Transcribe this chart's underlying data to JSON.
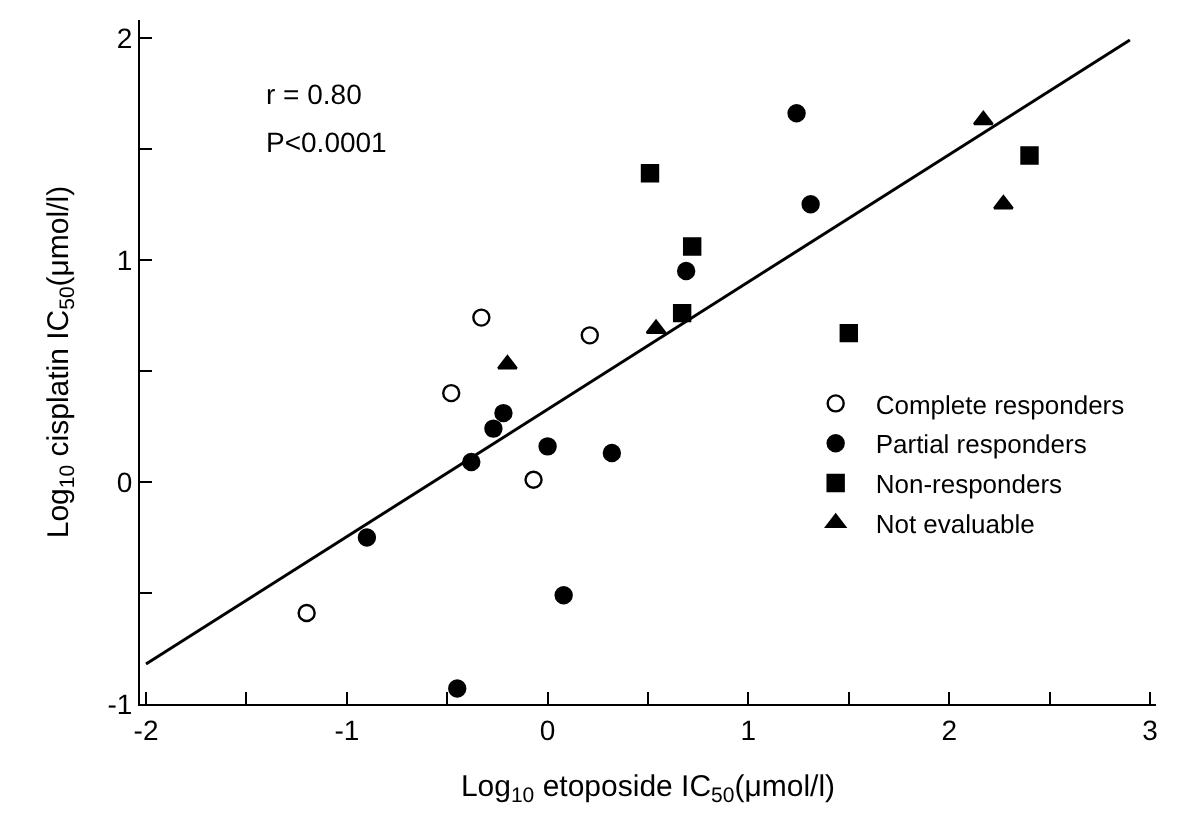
{
  "chart_data": {
    "type": "scatter",
    "xlabel": "Log$_{10}$ etoposide IC$_{50}$(μmol/l)",
    "ylabel": "Log$_{10}$ cisplatin IC$_{50}$(μmol/l)",
    "annotations": [
      "r = 0.80",
      "P<0.0001"
    ],
    "xlim": [
      -2.03,
      3.03
    ],
    "ylim": [
      -1.0,
      2.08
    ],
    "xticks": [
      -2,
      {
        "value": -1.5,
        "label": null
      },
      -1,
      {
        "value": -0.5,
        "label": null
      },
      0,
      {
        "value": 0.5,
        "label": null
      },
      1,
      {
        "value": 1.5,
        "label": null
      },
      2,
      {
        "value": 2.5,
        "label": null
      },
      3
    ],
    "yticks": [
      -1,
      {
        "value": -0.5,
        "label": null
      },
      0,
      {
        "value": 0.5,
        "label": null
      },
      1,
      {
        "value": 1.5,
        "label": null
      },
      2
    ],
    "legend": "bottom right",
    "series": [
      {
        "name": "Complete responders",
        "color": "#ffffff",
        "marker": "circle",
        "x": [
          -0.33,
          -0.48,
          0.21,
          -0.07,
          -1.2
        ],
        "values": [
          0.74,
          0.4,
          0.66,
          0.01,
          -0.59
        ]
      },
      {
        "name": "Partial responders",
        "color": "#000000",
        "marker": "circle",
        "x": [
          -0.9,
          -0.38,
          -0.27,
          -0.22,
          0.0,
          0.32,
          0.08,
          -0.45,
          1.24,
          1.31,
          0.69
        ],
        "values": [
          -0.25,
          0.09,
          0.24,
          0.31,
          0.16,
          0.13,
          -0.51,
          -0.93,
          1.66,
          1.25,
          0.95
        ]
      },
      {
        "name": "Non-responders",
        "color": "#000000",
        "marker": "square",
        "x": [
          0.51,
          0.72,
          0.67,
          1.5,
          2.4
        ],
        "values": [
          1.39,
          1.06,
          0.76,
          0.67,
          1.47
        ]
      },
      {
        "name": "Not evaluable",
        "color": "#000000",
        "marker": "triangle",
        "x": [
          -0.2,
          0.54,
          2.17,
          2.27
        ],
        "values": [
          0.53,
          0.69,
          1.63,
          1.25
        ]
      },
      {
        "type": "line",
        "color": "#000000",
        "marker": "none",
        "line_style": "solid",
        "x": [
          -2.0,
          2.9
        ],
        "values": [
          -0.82,
          1.99
        ]
      }
    ]
  }
}
